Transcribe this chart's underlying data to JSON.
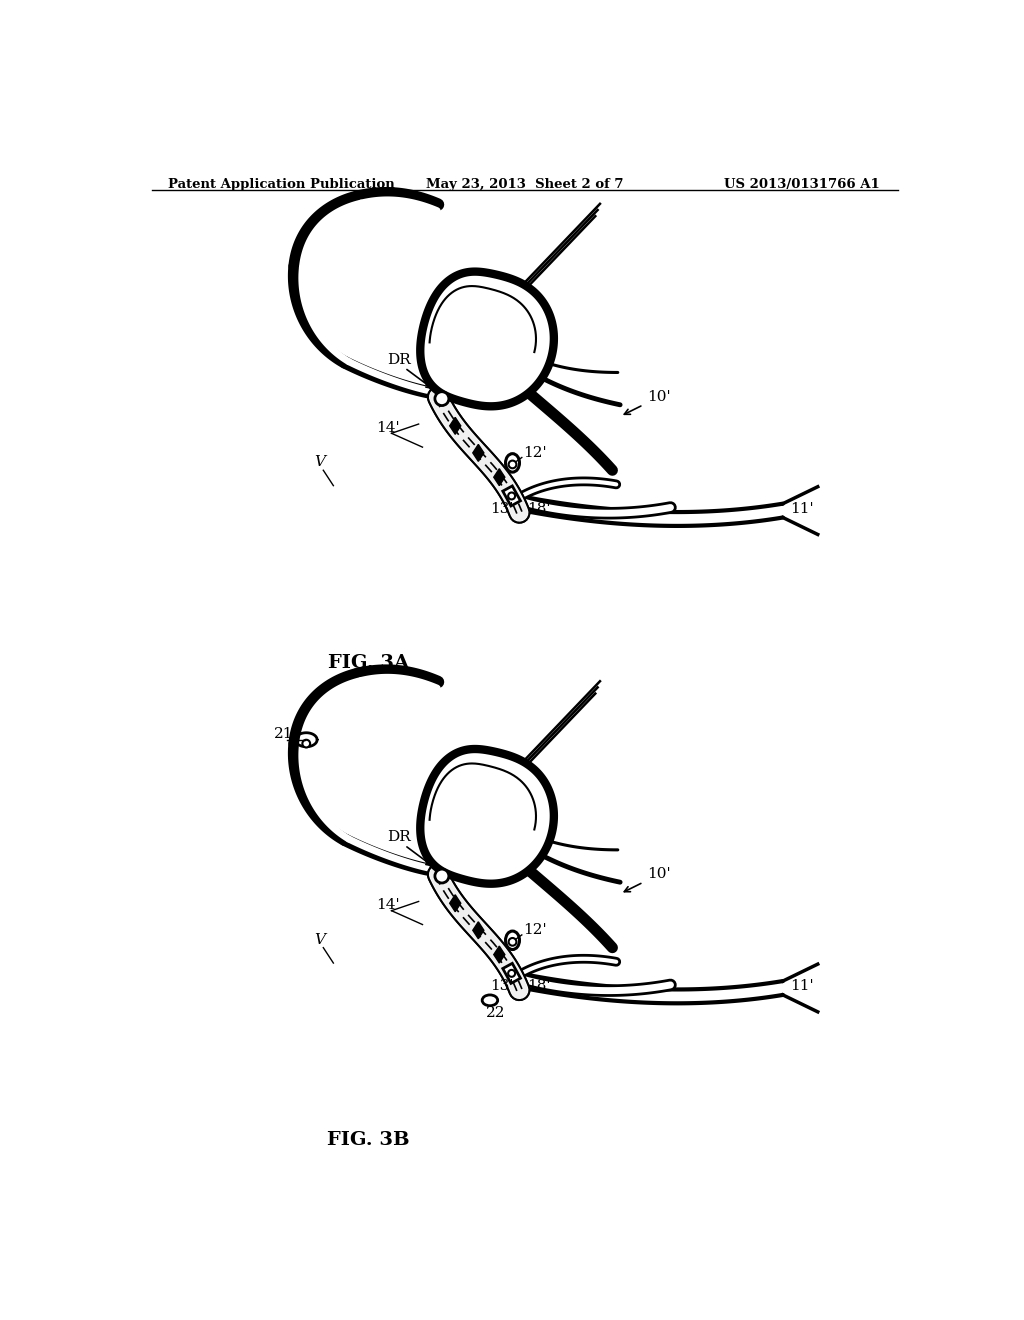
{
  "background": "#ffffff",
  "header_left": "Patent Application Publication",
  "header_mid": "May 23, 2013  Sheet 2 of 7",
  "header_right": "US 2013/0131766 A1",
  "fig_a_label": "FIG. 3A",
  "fig_b_label": "FIG. 3B"
}
